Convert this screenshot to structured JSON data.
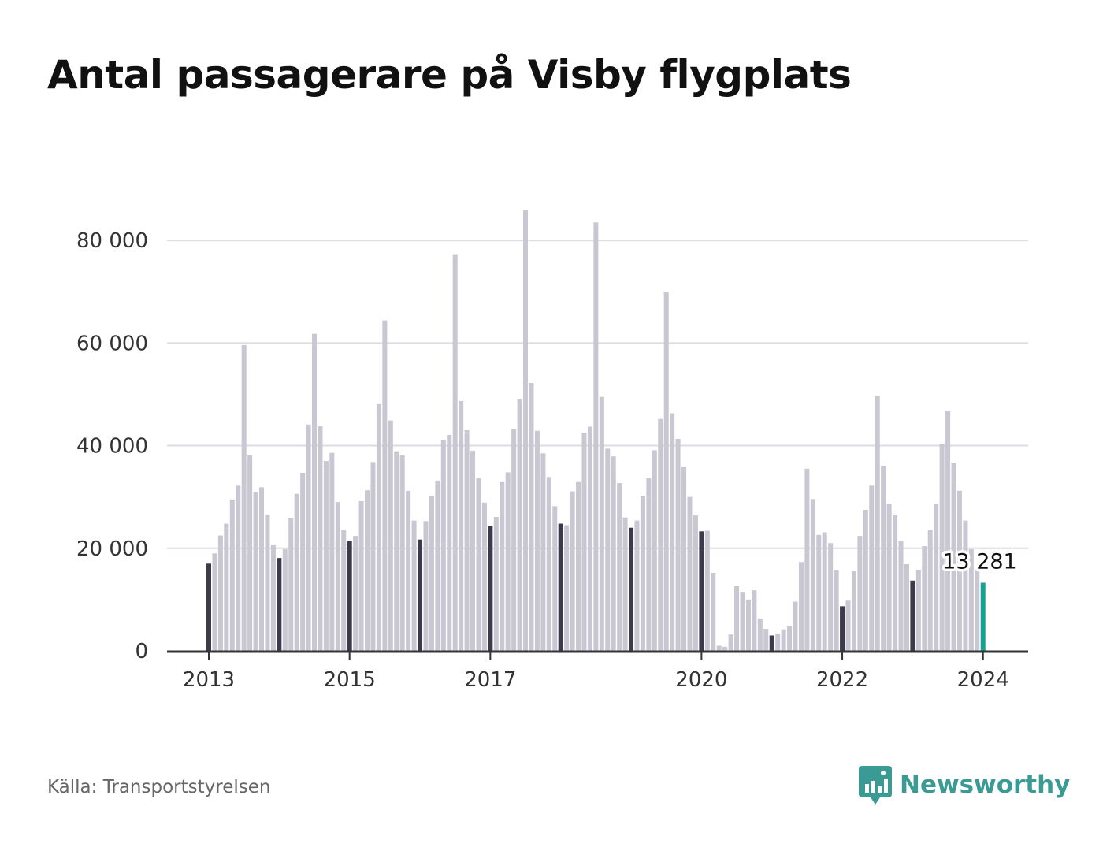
{
  "title": "Antal passagerare på Visby flygplats",
  "source": "Källa: Transportstyrelsen",
  "brand": {
    "name": "Newsworthy",
    "icon": "newsworthy-logo-icon",
    "color": "#3a9b94"
  },
  "colors": {
    "bar": "#c8c7d2",
    "january_bar": "#3c3a4b",
    "latest_bar": "#14a393",
    "grid": "#dcdce2",
    "axis": "#333333"
  },
  "chart_data": {
    "type": "bar",
    "title": "Antal passagerare på Visby flygplats",
    "xlabel": "",
    "ylabel": "",
    "ylim": [
      0,
      88000
    ],
    "yticks": [
      0,
      20000,
      40000,
      60000,
      80000
    ],
    "ytick_labels": [
      "0",
      "20 000",
      "40 000",
      "60 000",
      "80 000"
    ],
    "xtick_labels": [
      "2013",
      "2015",
      "2017",
      "2020",
      "2022",
      "2024"
    ],
    "grid": true,
    "legend": "none",
    "start": "2013-01",
    "end": "2024-01",
    "annotation": {
      "label": "13 281",
      "month": "2024-01",
      "value": 13281
    },
    "values": [
      17000,
      19000,
      22500,
      24800,
      29500,
      32200,
      59600,
      38100,
      30900,
      31900,
      26600,
      20600,
      18100,
      19800,
      25900,
      30600,
      34700,
      44100,
      61800,
      43800,
      37000,
      38600,
      29000,
      23500,
      21400,
      22400,
      29200,
      31300,
      36800,
      48100,
      64400,
      44900,
      38900,
      38100,
      31200,
      25400,
      21700,
      25300,
      30100,
      33200,
      41100,
      42100,
      77300,
      48700,
      43000,
      39000,
      33700,
      28900,
      24300,
      26100,
      32900,
      34800,
      43300,
      49000,
      85900,
      52200,
      42900,
      38500,
      33900,
      28200,
      24800,
      24500,
      31100,
      32900,
      42500,
      43700,
      83500,
      49500,
      39400,
      37900,
      32700,
      26000,
      24000,
      25400,
      30200,
      33700,
      39100,
      45200,
      69900,
      46300,
      41300,
      35800,
      30000,
      26400,
      23300,
      23400,
      15200,
      1000,
      800,
      3200,
      12600,
      11500,
      10000,
      11800,
      6300,
      4300,
      3000,
      3400,
      4200,
      4900,
      9600,
      17300,
      35500,
      29600,
      22600,
      23100,
      21000,
      15700,
      8700,
      9800,
      15500,
      22400,
      27500,
      32200,
      49700,
      36000,
      28700,
      26400,
      21400,
      16900,
      13700,
      15800,
      20400,
      23500,
      28700,
      40400,
      46700,
      36700,
      31200,
      25400,
      19800,
      15800,
      13281
    ]
  }
}
